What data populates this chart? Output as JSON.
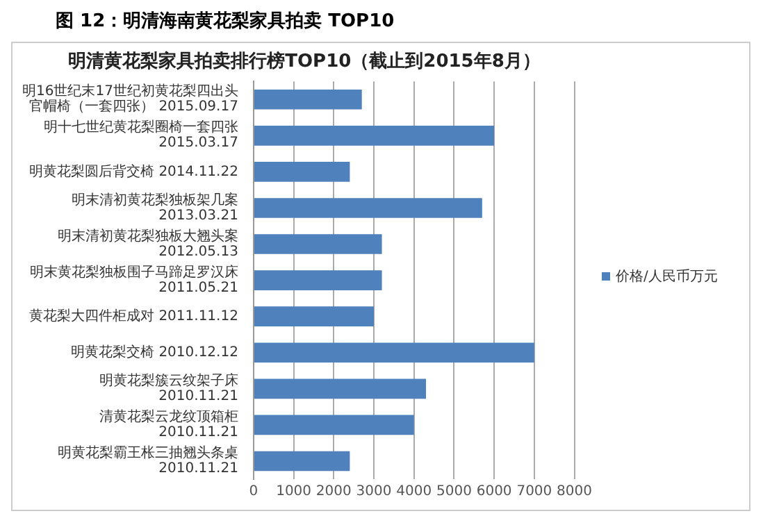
{
  "chart_data": {
    "type": "bar",
    "orientation": "horizontal",
    "title": "图 12：明清海南黄花梨家具拍卖 TOP10",
    "subtitle": "明清黄花梨家具拍卖排行榜TOP10（截止到2015年8月）",
    "categories": [
      "明16世纪末17世纪初黄花梨四出头官帽椅（一套四张） 2015.09.17",
      "明十七世纪黄花梨圈椅一套四张 2015.03.17",
      "明黄花梨圆后背交椅 2014.11.22",
      "明末清初黄花梨独板架几案 2013.03.21",
      "明末清初黄花梨独板大翘头案 2012.05.13",
      "明末黄花梨独板围子马蹄足罗汉床 2011.05.21",
      "黄花梨大四件柜成对 2011.11.12",
      "明黄花梨交椅 2010.12.12",
      "明黄花梨簇云纹架子床 2010.11.21",
      "清黄花梨云龙纹顶箱柜 2010.11.21",
      "明黄花梨霸王枨三抽翘头条桌 2010.11.21"
    ],
    "series": [
      {
        "name": "价格/人民币万元",
        "color": "#4f81bd",
        "values": [
          2700,
          6000,
          2400,
          5700,
          3200,
          3200,
          3000,
          7000,
          4300,
          4000,
          2400
        ]
      }
    ],
    "xlim": [
      0,
      8000
    ],
    "xticks": [
      0,
      1000,
      2000,
      3000,
      4000,
      5000,
      6000,
      7000,
      8000
    ],
    "grid": "x",
    "legend": "right"
  }
}
